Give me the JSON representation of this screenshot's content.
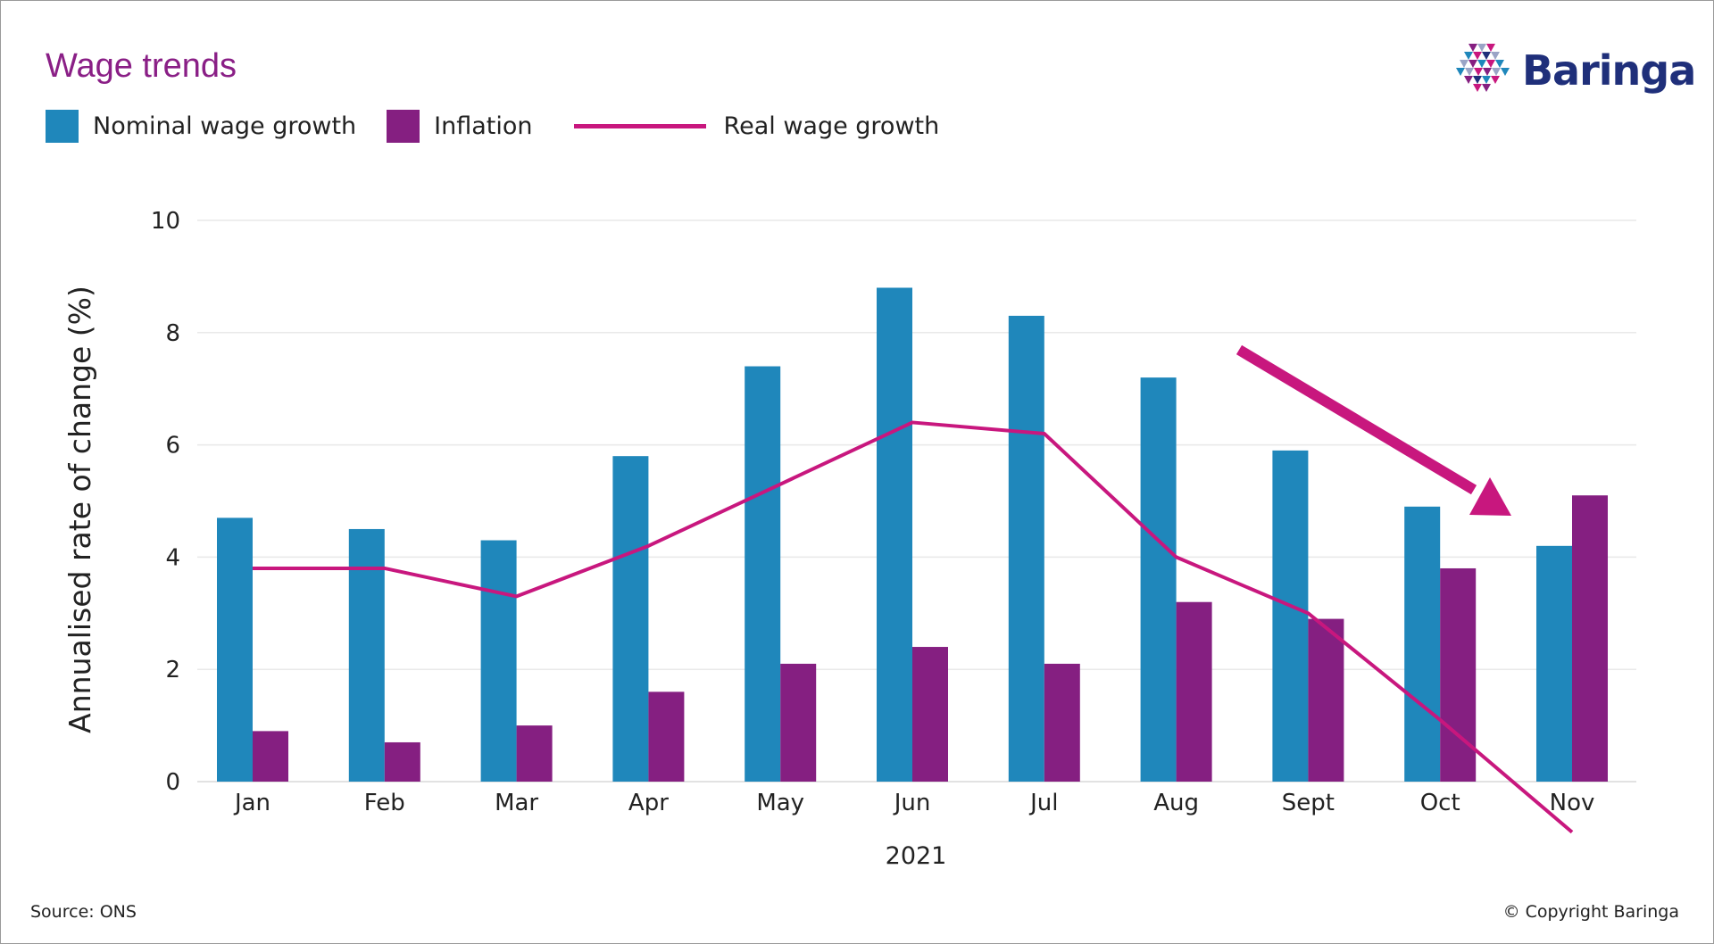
{
  "header": {
    "title": "Wage trends"
  },
  "legend": [
    {
      "label": "Nominal wage growth",
      "color": "#1f87bb",
      "kind": "box"
    },
    {
      "label": "Inflation",
      "color": "#851f81",
      "kind": "box"
    },
    {
      "label": "Real wage growth",
      "color": "#c8177e",
      "kind": "line"
    }
  ],
  "logo": {
    "text": "Baringa",
    "icon": "triangle-mosaic-logo-icon"
  },
  "footer": {
    "source": "Source: ONS",
    "copyright": "© Copyright Baringa"
  },
  "chart_data": {
    "type": "bar",
    "categories": [
      "Jan",
      "Feb",
      "Mar",
      "Apr",
      "May",
      "Jun",
      "Jul",
      "Aug",
      "Sept",
      "Oct",
      "Nov"
    ],
    "series": [
      {
        "name": "Nominal wage growth",
        "type": "bar",
        "color": "#1f87bb",
        "values": [
          4.7,
          4.5,
          4.3,
          5.8,
          7.4,
          8.8,
          8.3,
          7.2,
          5.9,
          4.9,
          4.2
        ]
      },
      {
        "name": "Inflation",
        "type": "bar",
        "color": "#851f81",
        "values": [
          0.9,
          0.7,
          1.0,
          1.6,
          2.1,
          2.4,
          2.1,
          3.2,
          2.9,
          3.8,
          5.1
        ]
      },
      {
        "name": "Real wage growth",
        "type": "line",
        "color": "#c8177e",
        "values": [
          3.8,
          3.8,
          3.3,
          4.2,
          5.3,
          6.4,
          6.2,
          4.0,
          3.0,
          1.1,
          -0.9
        ]
      }
    ],
    "ylabel": "Annualised rate of change (%)",
    "xlabel": "2021",
    "yticks": [
      0,
      2,
      4,
      6,
      8,
      10
    ],
    "ylim": [
      0,
      10
    ],
    "grid": true,
    "legend_position": "top-left",
    "annotations": [
      {
        "type": "arrow",
        "direction": "down-right",
        "color": "#c8177e"
      }
    ]
  }
}
